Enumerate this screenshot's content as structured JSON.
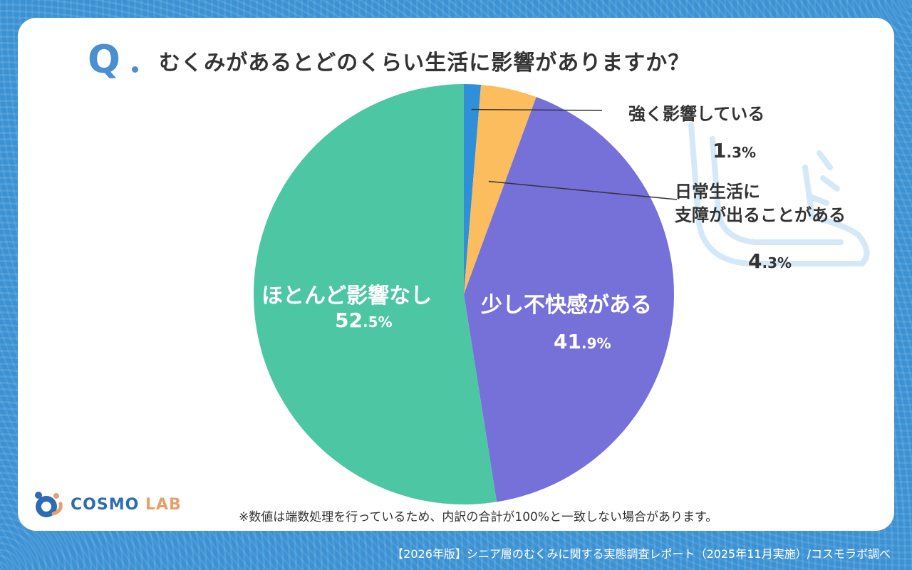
{
  "question": {
    "mark": "Q",
    "text": "むくみがあるとどのくらい生活に影響がありますか？"
  },
  "chart_data": {
    "type": "pie",
    "start": "12 o'clock, clockwise",
    "slices": [
      {
        "label": "強く影響している",
        "value": 1.3,
        "pct_int": "1",
        "pct_dec": ".3%",
        "color": "#2f8fd8"
      },
      {
        "label": "日常生活に支障が出ることがある",
        "label_lines": [
          "日常生活に",
          "支障が出ることがある"
        ],
        "value": 4.3,
        "pct_int": "4",
        "pct_dec": ".3%",
        "color": "#fbbd5e"
      },
      {
        "label": "少し不快感がある",
        "value": 41.9,
        "pct_int": "41",
        "pct_dec": ".9%",
        "color": "#7670d9"
      },
      {
        "label": "ほとんど影響なし",
        "value": 52.5,
        "pct_int": "52",
        "pct_dec": ".5%",
        "color": "#4dc6a3"
      }
    ]
  },
  "note": "※数値は端数処理を行っているため、内訳の合計が100%と一致しない場合があります。",
  "logo": {
    "part1": "COSMO",
    "part2": "LAB"
  },
  "footer": "【2026年版】シニア層のむくみに関する実態調査レポート（2025年11月実施）/コスモラボ調べ",
  "colors": {
    "background": "#3a91d3",
    "accent": "#4a8fcf",
    "text": "#333333"
  }
}
